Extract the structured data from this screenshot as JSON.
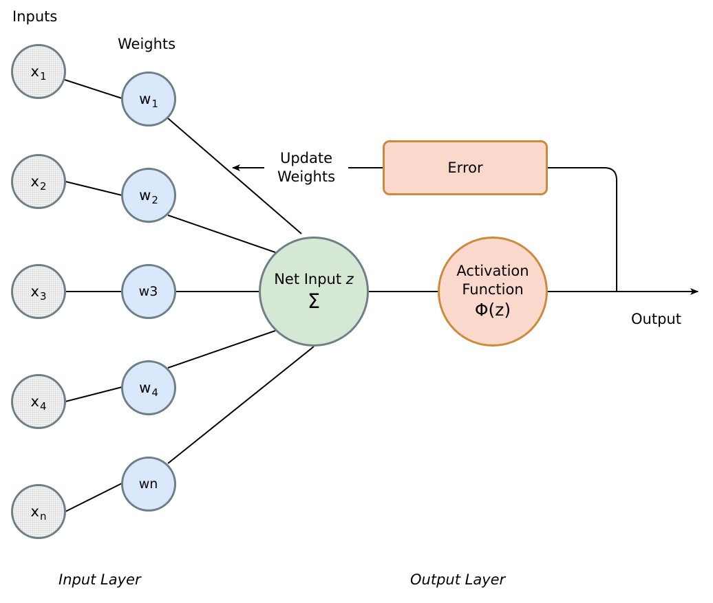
{
  "labels": {
    "inputs": "Inputs",
    "weights": "Weights",
    "update_weights_line1": "Update",
    "update_weights_line2": "Weights",
    "output": "Output",
    "input_layer": "Input Layer",
    "output_layer": "Output Layer"
  },
  "inputs": [
    {
      "base": "x",
      "sub": "1"
    },
    {
      "base": "x",
      "sub": "2"
    },
    {
      "base": "x",
      "sub": "3"
    },
    {
      "base": "x",
      "sub": "4"
    },
    {
      "base": "x",
      "sub": "n"
    }
  ],
  "weights": [
    {
      "base": "w",
      "sub": "1"
    },
    {
      "base": "w",
      "sub": "2"
    },
    {
      "base": "w3",
      "sub": ""
    },
    {
      "base": "w",
      "sub": "4"
    },
    {
      "base": "wn",
      "sub": ""
    }
  ],
  "net_input": {
    "label": "Net Input ",
    "var": "z",
    "symbol": "Σ"
  },
  "activation": {
    "line1": "Activation",
    "line2": "Function",
    "formula": "Φ(z)"
  },
  "error": {
    "label": "Error"
  },
  "colors": {
    "node_border": "#6f7f86",
    "input_fill": "#f3f3f3",
    "weight_fill": "#dae8fc",
    "net_fill": "#d5e8d4",
    "orange_border": "#cc8a3a",
    "orange_fill": "#fad9cc"
  }
}
